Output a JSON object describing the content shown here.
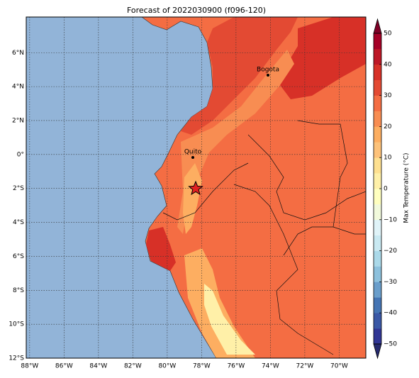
{
  "map": {
    "title": "Forecast of 2022030900 (f096-120)",
    "xlim": [
      -88.2,
      -68.45
    ],
    "ylim": [
      -12,
      8.1
    ],
    "xticks": [
      {
        "value": -88,
        "label": "88°W"
      },
      {
        "value": -86,
        "label": "86°W"
      },
      {
        "value": -84,
        "label": "84°W"
      },
      {
        "value": -82,
        "label": "82°W"
      },
      {
        "value": -80,
        "label": "80°W"
      },
      {
        "value": -78,
        "label": "78°W"
      },
      {
        "value": -76,
        "label": "76°W"
      },
      {
        "value": -74,
        "label": "74°W"
      },
      {
        "value": -72,
        "label": "72°W"
      },
      {
        "value": -70,
        "label": "70°W"
      }
    ],
    "yticks": [
      {
        "value": -12,
        "label": "12°S"
      },
      {
        "value": -10,
        "label": "10°S"
      },
      {
        "value": -8,
        "label": "8°S"
      },
      {
        "value": -6,
        "label": "6°S"
      },
      {
        "value": -4,
        "label": "4°S"
      },
      {
        "value": -2,
        "label": "2°S"
      },
      {
        "value": 0,
        "label": "0°"
      },
      {
        "value": 2,
        "label": "2°N"
      },
      {
        "value": 4,
        "label": "4°N"
      },
      {
        "value": 6,
        "label": "6°N"
      }
    ],
    "grid": true,
    "places": [
      "Bogota",
      "Quito"
    ],
    "colorbar": {
      "label": "Max Temperature (°C)",
      "lim": [
        -50,
        50
      ],
      "ticks": [
        {
          "value": -50,
          "label": "−50"
        },
        {
          "value": -40,
          "label": "−40"
        },
        {
          "value": -30,
          "label": "−30"
        },
        {
          "value": -20,
          "label": "−20"
        },
        {
          "value": -10,
          "label": "−10"
        },
        0,
        10,
        20,
        30,
        40,
        50
      ],
      "colors": [
        "#313695",
        "#3a58a6",
        "#4575b4",
        "#6a9ecb",
        "#8dc1dd",
        "#abd9e9",
        "#c9e9f2",
        "#e0f3f8",
        "#f2fadc",
        "#ffffbf",
        "#fff0a8",
        "#fee090",
        "#fdc27a",
        "#fdae61",
        "#f88d52",
        "#f46d43",
        "#e34a33",
        "#d73027",
        "#bd1726",
        "#a50026"
      ],
      "under": "#262a6e",
      "over": "#7f0026"
    }
  }
}
